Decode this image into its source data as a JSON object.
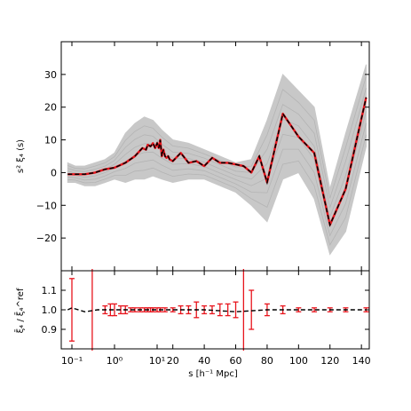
{
  "chart_data": [
    {
      "type": "line",
      "panel": "top",
      "ylabel": "s² ξ₄ (s)",
      "ylim": [
        -30,
        40
      ],
      "yticks": [
        -20,
        -10,
        0,
        10,
        20,
        30
      ],
      "ytick_labels": [
        "−20",
        "−10",
        "0",
        "10",
        "20",
        "30"
      ],
      "grid": false,
      "series": [
        {
          "style": "gray mock realizations band",
          "color": "#c8c8c8",
          "x": [
            0.08,
            0.12,
            0.2,
            0.35,
            0.6,
            1.0,
            1.8,
            3,
            5,
            8,
            13,
            20,
            30,
            40,
            50,
            60,
            70,
            80,
            90,
            100,
            110,
            120,
            130,
            143
          ],
          "upper": [
            3,
            2,
            2,
            3,
            4,
            6,
            12,
            15,
            17,
            16,
            13,
            10,
            9,
            7,
            5,
            3,
            4,
            16,
            30,
            25,
            20,
            -5,
            12,
            33
          ],
          "lower": [
            -3,
            -3,
            -4,
            -4,
            -3,
            -2,
            -3,
            -2,
            -2,
            -1,
            -2,
            -3,
            -2,
            -2,
            -4,
            -6,
            -10,
            -15,
            -2,
            0,
            -8,
            -25,
            -18,
            8
          ]
        },
        {
          "style": "red solid",
          "color": "#e8141c",
          "x": [
            0.08,
            0.12,
            0.2,
            0.35,
            0.6,
            1.0,
            1.8,
            3,
            4.5,
            5.5,
            6,
            7,
            8,
            9,
            10,
            11,
            12,
            13,
            14,
            15,
            16,
            17,
            18,
            20,
            25,
            30,
            35,
            40,
            45,
            50,
            55,
            60,
            65,
            70,
            75,
            80,
            90,
            100,
            110,
            120,
            130,
            143
          ],
          "y": [
            -0.5,
            -0.5,
            -0.5,
            0,
            1,
            1.5,
            3,
            5,
            7.5,
            7,
            8.5,
            8,
            9,
            7.5,
            9,
            7.5,
            10,
            5,
            7,
            5,
            4.5,
            5,
            4,
            3.5,
            6,
            3,
            3.5,
            2,
            4.5,
            3,
            3,
            2.5,
            2,
            0,
            5,
            -3,
            18,
            11,
            6,
            -16,
            -5,
            23
          ]
        },
        {
          "style": "black dashed",
          "color": "#000000",
          "x": [
            0.08,
            0.12,
            0.2,
            0.35,
            0.6,
            1.0,
            1.8,
            3,
            4.5,
            5.5,
            6,
            7,
            8,
            9,
            10,
            11,
            12,
            13,
            14,
            15,
            16,
            17,
            18,
            20,
            25,
            30,
            35,
            40,
            45,
            50,
            55,
            60,
            65,
            70,
            75,
            80,
            90,
            100,
            110,
            120,
            130,
            143
          ],
          "y": [
            -0.5,
            -0.5,
            -0.5,
            0,
            1,
            1.5,
            3,
            5,
            7.5,
            7,
            8.5,
            8,
            9,
            7.5,
            9,
            7.5,
            10,
            5,
            7,
            5,
            4.5,
            5,
            4,
            3.5,
            6,
            3,
            3.5,
            2,
            4.5,
            3,
            3,
            2.5,
            2,
            0,
            5,
            -3,
            18,
            11,
            6,
            -16,
            -5,
            23
          ]
        }
      ]
    },
    {
      "type": "line",
      "panel": "bottom",
      "ylabel": "ξ̄₄ / ξ̄₄^ref",
      "ylim": [
        0.8,
        1.2
      ],
      "yticks": [
        0.9,
        1.0,
        1.1
      ],
      "ytick_labels": [
        "0.9",
        "1.0",
        "1.1"
      ],
      "xlabel": "s [h⁻¹ Mpc]",
      "xtick_labels": [
        "10⁻¹",
        "10⁰",
        "10¹",
        "20",
        "40",
        "60",
        "80",
        "100",
        "120",
        "140"
      ],
      "series": [
        {
          "style": "red error bars",
          "color": "#e8141c",
          "x": [
            0.1,
            0.3,
            0.6,
            0.8,
            1.0,
            1.4,
            1.8,
            2.4,
            3,
            4,
            5,
            6,
            7,
            8,
            10,
            12,
            15,
            20,
            25,
            30,
            35,
            40,
            45,
            50,
            55,
            60,
            65,
            70,
            80,
            90,
            100,
            110,
            120,
            130,
            143
          ],
          "y": [
            1.0,
            1.0,
            1.0,
            1.0,
            1.0,
            1.0,
            1.0,
            1.0,
            1.0,
            1.0,
            1.0,
            1.0,
            1.0,
            1.0,
            1.0,
            1.0,
            1.0,
            1.0,
            1.0,
            1.0,
            1.0,
            1.0,
            1.0,
            1.0,
            1.0,
            1.0,
            1.0,
            1.0,
            1.0,
            1.0,
            1.0,
            1.0,
            1.0,
            1.0,
            1.0
          ],
          "err": [
            0.16,
            0.6,
            0.02,
            0.03,
            0.03,
            0.02,
            0.02,
            0.01,
            0.01,
            0.01,
            0.01,
            0.01,
            0.01,
            0.01,
            0.01,
            0.01,
            0.01,
            0.01,
            0.02,
            0.02,
            0.04,
            0.02,
            0.02,
            0.03,
            0.03,
            0.04,
            0.6,
            0.1,
            0.03,
            0.02,
            0.01,
            0.01,
            0.01,
            0.01,
            0.01
          ]
        },
        {
          "style": "black dashed",
          "color": "#000000",
          "x": [
            0.08,
            0.1,
            0.2,
            0.4,
            1,
            2,
            5,
            10,
            20,
            40,
            60,
            80,
            100,
            120,
            143
          ],
          "y": [
            1.0,
            1.01,
            0.99,
            1.0,
            1.0,
            1.0,
            1.0,
            1.0,
            1.0,
            1.0,
            0.99,
            1.0,
            1.0,
            1.0,
            1.0
          ]
        }
      ]
    }
  ]
}
